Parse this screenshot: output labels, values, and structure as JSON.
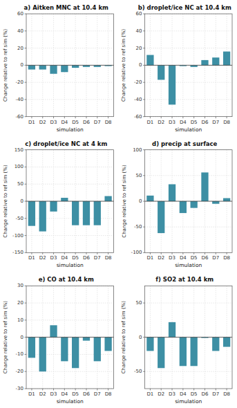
{
  "chart_data": [
    {
      "type": "bar",
      "title": "a) Aitken MNC at 10.4 km",
      "xlabel": "simulation",
      "ylabel": "Change relative to ref sim (%)",
      "categories": [
        "D1",
        "D2",
        "D3",
        "D4",
        "D5",
        "D6",
        "D7",
        "D8"
      ],
      "values": [
        -5,
        -5,
        -10,
        -8,
        -3,
        -2,
        -2,
        -1
      ],
      "color": "#3d8fa4",
      "ylim": [
        -60,
        60
      ],
      "yticks": [
        -60,
        -40,
        -20,
        0,
        20,
        40,
        60
      ],
      "grid": true
    },
    {
      "type": "bar",
      "title": "b) droplet/ice NC at 10.4 km",
      "xlabel": "simulation",
      "ylabel": "Change relative to ref sim (%)",
      "categories": [
        "D1",
        "D2",
        "D3",
        "D4",
        "D5",
        "D6",
        "D7",
        "D8"
      ],
      "values": [
        12,
        -17,
        -46,
        -1,
        -2,
        6,
        9,
        16
      ],
      "color": "#3d8fa4",
      "ylim": [
        -60,
        60
      ],
      "yticks": [
        -60,
        -40,
        -20,
        0,
        20,
        40,
        60
      ],
      "grid": true
    },
    {
      "type": "bar",
      "title": "c) droplet/ice NC at 4 km",
      "xlabel": "simulation",
      "ylabel": "Change relative to ref sim (%)",
      "categories": [
        "D1",
        "D2",
        "D3",
        "D4",
        "D5",
        "D6",
        "D7",
        "D8"
      ],
      "values": [
        -72,
        -88,
        -30,
        10,
        -70,
        -70,
        -70,
        15
      ],
      "color": "#3d8fa4",
      "ylim": [
        -150,
        150
      ],
      "yticks": [
        -150,
        -100,
        -50,
        0,
        50,
        100,
        150
      ],
      "grid": true
    },
    {
      "type": "bar",
      "title": "d) precip at surface",
      "xlabel": "simulation",
      "ylabel": "Change relative to ref sim (%)",
      "categories": [
        "D1",
        "D2",
        "D3",
        "D4",
        "D5",
        "D6",
        "D7",
        "D8"
      ],
      "values": [
        11,
        -62,
        33,
        -23,
        -13,
        56,
        -5,
        6
      ],
      "color": "#3d8fa4",
      "ylim": [
        -100,
        100
      ],
      "yticks": [
        -100,
        -50,
        0,
        50,
        100
      ],
      "grid": true
    },
    {
      "type": "bar",
      "title": "e) CO at 10.4 km",
      "xlabel": "simulation",
      "ylabel": "Change relative to ref sim (%)",
      "categories": [
        "D1",
        "D2",
        "D3",
        "D4",
        "D5",
        "D6",
        "D7",
        "D8"
      ],
      "values": [
        -12,
        -20,
        7,
        -14,
        -18,
        -2,
        -14,
        -8
      ],
      "color": "#3d8fa4",
      "ylim": [
        -30,
        30
      ],
      "yticks": [
        -30,
        -20,
        -10,
        0,
        10,
        20,
        30
      ],
      "grid": true
    },
    {
      "type": "bar",
      "title": "f) SO2 at 10.4 km",
      "xlabel": "simulation",
      "ylabel": "Change relative to ref sim (%)",
      "categories": [
        "D1",
        "D2",
        "D3",
        "D4",
        "D5",
        "D6",
        "D7",
        "D8"
      ],
      "values": [
        -20,
        -45,
        22,
        -42,
        -42,
        -1,
        -20,
        -14
      ],
      "color": "#3d8fa4",
      "ylim": [
        -75,
        75
      ],
      "yticks": [
        -50,
        0,
        50
      ],
      "grid": true
    }
  ]
}
